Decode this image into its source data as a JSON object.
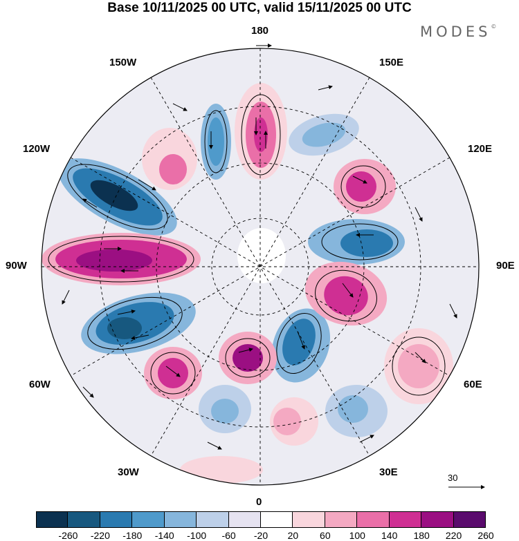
{
  "title": "Base 10/11/2025 00 UTC, valid 15/11/2025 00 UTC",
  "logo": "MODES",
  "logo_mark": "©",
  "longitude_labels": {
    "top": "180",
    "bottom": "0",
    "left": "90W",
    "right": "90E",
    "upper_left": "150W",
    "upper_right": "150E",
    "mid_left_upper": "120W",
    "mid_right_upper": "120E",
    "mid_left_lower": "60W",
    "mid_right_lower": "60E",
    "lower_left": "30W",
    "lower_right": "30E"
  },
  "reference_vector": "30",
  "colorbar": {
    "labels": [
      "-260",
      "-220",
      "-180",
      "-140",
      "-100",
      "-60",
      "-20",
      "20",
      "60",
      "100",
      "140",
      "180",
      "220",
      "260"
    ],
    "colors": [
      "#0b3150",
      "#17587f",
      "#2a7ab0",
      "#4f9acb",
      "#86b6dc",
      "#bdd0e9",
      "#e6e3f1",
      "#ffffff",
      "#f9d6dd",
      "#f4a9c2",
      "#ea6fa8",
      "#cf2f93",
      "#9b0f82",
      "#5a0b6d"
    ]
  }
}
